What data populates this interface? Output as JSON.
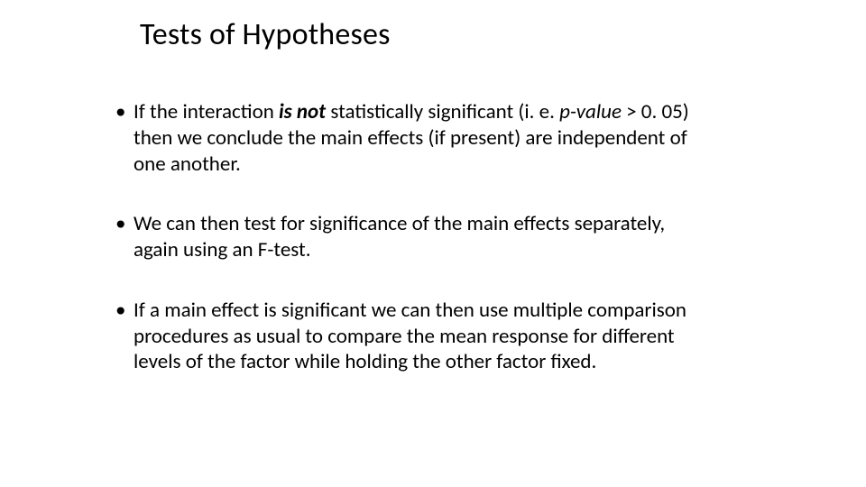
{
  "slide": {
    "title": "Tests of Hypotheses",
    "title_fontsize": 34,
    "body_fontsize": 23,
    "background_color": "#ffffff",
    "text_color": "#000000",
    "bullets": [
      {
        "pre": "If the interaction ",
        "isnot": "is not",
        "mid1": " statistically significant (i. e. ",
        "pvalue": "p-value",
        "post": " > 0. 05) then we conclude the main effects (if present) are independent of one another."
      },
      {
        "text": "We can then test for significance of the main effects separately, again using an F-test."
      },
      {
        "text": "If a main effect is significant we can then use multiple comparison procedures as usual to compare the mean response for different levels of the factor while holding the other factor fixed."
      }
    ]
  }
}
